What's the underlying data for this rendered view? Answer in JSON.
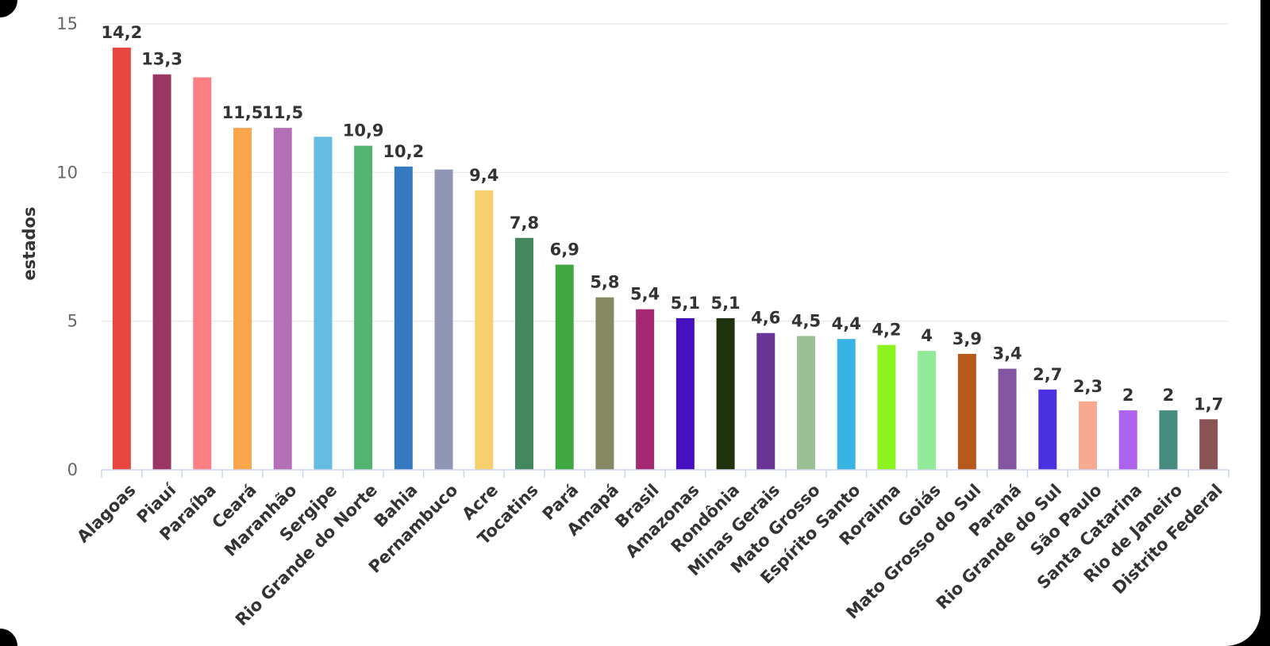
{
  "chart_data": {
    "type": "bar",
    "ylabel": "estados",
    "xlabel": "",
    "title": "",
    "ylim": [
      0,
      15
    ],
    "yticks": [
      "0",
      "5",
      "10",
      "15"
    ],
    "grid": true,
    "legend": "none",
    "categories": [
      "Alagoas",
      "Piauí",
      "Paraíba",
      "Ceará",
      "Maranhão",
      "Sergipe",
      "Rio Grande do Norte",
      "Bahia",
      "Pernambuco",
      "Acre",
      "Tocatins",
      "Pará",
      "Amapá",
      "Brasil",
      "Amazonas",
      "Rondônia",
      "Minas Gerais",
      "Mato Grosso",
      "Espírito Santo",
      "Roraima",
      "Goiás",
      "Mato Grosso do Sul",
      "Paraná",
      "Rio Grande do Sul",
      "São Paulo",
      "Santa Catarina",
      "Rio de Janeiro",
      "Distrito Federal"
    ],
    "values": [
      14.2,
      13.3,
      13.2,
      11.5,
      11.5,
      11.2,
      10.9,
      10.2,
      10.1,
      9.4,
      7.8,
      6.9,
      5.8,
      5.4,
      5.1,
      5.1,
      4.6,
      4.5,
      4.4,
      4.2,
      4,
      3.9,
      3.4,
      2.7,
      2.3,
      2,
      2,
      1.7
    ],
    "value_labels": [
      "14,2",
      "13,3",
      "",
      "11,5",
      "11,5",
      "",
      "10,9",
      "10,2",
      "",
      "9,4",
      "7,8",
      "6,9",
      "5,8",
      "5,4",
      "5,1",
      "5,1",
      "4,6",
      "4,5",
      "4,4",
      "4,2",
      "4",
      "3,9",
      "3,4",
      "2,7",
      "2,3",
      "2",
      "2",
      "1,7"
    ],
    "colors": [
      "#e8473f",
      "#9b3562",
      "#fb7f83",
      "#fba54c",
      "#b46fb7",
      "#64bce3",
      "#52b470",
      "#3579c1",
      "#9195b4",
      "#f7cf6c",
      "#44865d",
      "#3fa840",
      "#868863",
      "#a42872",
      "#4510c0",
      "#20330f",
      "#6a3497",
      "#9bc096",
      "#37b4e4",
      "#8cf321",
      "#91ea97",
      "#b8591b",
      "#8456a2",
      "#4b30e0",
      "#f7aa8f",
      "#ad63ee",
      "#478a80",
      "#8a5354"
    ]
  }
}
